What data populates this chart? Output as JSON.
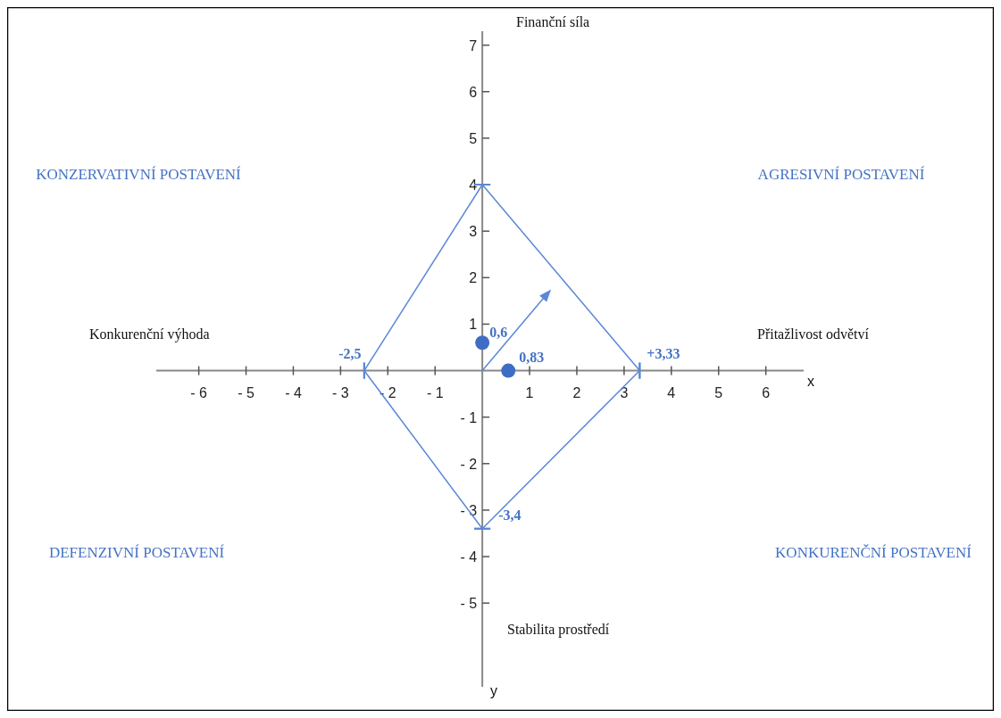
{
  "chart_data": {
    "type": "line",
    "xlim": [
      -6.9,
      6.8
    ],
    "ylim": [
      -6.8,
      7.3
    ],
    "xticks": [
      {
        "value": -6,
        "label": "- 6"
      },
      {
        "value": -5,
        "label": "- 5"
      },
      {
        "value": -4,
        "label": "- 4"
      },
      {
        "value": -3,
        "label": "- 3"
      },
      {
        "value": -2,
        "label": "- 2"
      },
      {
        "value": -1,
        "label": "- 1"
      },
      1,
      2,
      3,
      4,
      5,
      6
    ],
    "yticks": [
      {
        "value": -5,
        "label": "- 5"
      },
      {
        "value": -4,
        "label": "- 4"
      },
      {
        "value": -3,
        "label": "- 3"
      },
      {
        "value": -2,
        "label": "- 2"
      },
      {
        "value": -1,
        "label": "- 1"
      },
      1,
      2,
      3,
      4,
      5,
      6,
      7
    ],
    "grid": false,
    "series": [
      {
        "color": "#5b87d6",
        "marker": "none",
        "x": [
          0,
          3.33
        ],
        "values": [
          4,
          0
        ]
      },
      {
        "color": "#5b87d6",
        "marker": "none",
        "x": [
          0,
          3.33
        ],
        "values": [
          -3.4,
          0
        ]
      },
      {
        "color": "#5b87d6",
        "marker": "none",
        "x": [
          -2.5,
          0
        ],
        "values": [
          0,
          -3.4
        ]
      },
      {
        "color": "#5b87d6",
        "marker": "none",
        "x": [
          -2.5,
          0
        ],
        "values": [
          0,
          4
        ]
      },
      {
        "type": "scatter",
        "color": "#3f6dc4",
        "marker": "circle",
        "x": [
          0,
          0.55
        ],
        "values": [
          0.6,
          0
        ]
      }
    ],
    "annotations": [
      "Finanční síla",
      "Konkurenční výhoda",
      "Přitažlivost odvětví",
      "Stabilita prostředí",
      "KONZERVATIVNÍ POSTAVENÍ",
      "AGRESIVNÍ POSTAVENÍ",
      "DEFENZIVNÍ POSTAVENÍ",
      "KONKURENČNÍ POSTAVENÍ",
      "x",
      "y",
      {
        "text": "-2,5",
        "x": -2.5,
        "y": 0
      },
      {
        "text": "+3,33",
        "x": 3.33,
        "y": 0
      },
      {
        "text": "-3,4",
        "x": 0,
        "y": -3.4
      },
      {
        "text": "0,6",
        "x": 0,
        "y": 0.6
      },
      {
        "text": "0,83",
        "x": 0.55,
        "y": 0
      }
    ]
  }
}
